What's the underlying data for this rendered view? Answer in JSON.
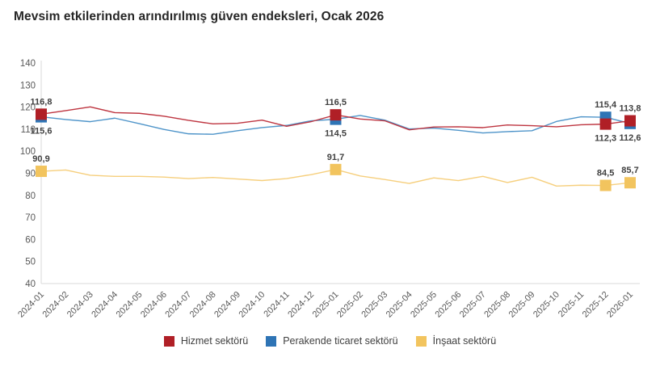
{
  "title": "Mevsim etkilerinden arındırılmış güven endeksleri, Ocak 2026",
  "colors": {
    "axis_line": "#D9D9D9",
    "tick_text": "#595959",
    "point_label_text": "#404040",
    "title_text": "#262626"
  },
  "chart_data": {
    "type": "line",
    "title": "Mevsim etkilerinden arındırılmış güven endeksleri, Ocak 2026",
    "xlabel": "",
    "ylabel": "",
    "ylim": [
      40,
      140
    ],
    "ytick_step": 10,
    "grid": false,
    "legend_position": "bottom",
    "decimal_separator": ",",
    "categories": [
      "2024-01",
      "2024-02",
      "2024-03",
      "2024-04",
      "2024-05",
      "2024-06",
      "2024-07",
      "2024-08",
      "2024-09",
      "2024-10",
      "2024-11",
      "2024-12",
      "2025-01",
      "2025-02",
      "2025-03",
      "2025-04",
      "2025-05",
      "2025-06",
      "2025-07",
      "2025-08",
      "2025-09",
      "2025-10",
      "2025-11",
      "2025-12",
      "2026-01"
    ],
    "series": [
      {
        "name": "Hizmet sektörü",
        "color": "#B01F26",
        "line_color": "#BE3540",
        "values": [
          116.8,
          118.4,
          120.1,
          117.5,
          117.2,
          115.9,
          114.0,
          112.4,
          112.7,
          114.1,
          111.3,
          113.4,
          116.5,
          114.6,
          113.8,
          109.7,
          111.0,
          111.1,
          110.7,
          111.9,
          111.6,
          111.1,
          112.0,
          112.3,
          113.8
        ],
        "point_labels": [
          {
            "index": 0,
            "text": "116,8",
            "pos": "above"
          },
          {
            "index": 12,
            "text": "116,5",
            "pos": "above"
          },
          {
            "index": 23,
            "text": "112,3",
            "pos": "below"
          },
          {
            "index": 24,
            "text": "113,8",
            "pos": "above"
          }
        ]
      },
      {
        "name": "Perakende ticaret sektörü",
        "color": "#2E74B5",
        "line_color": "#4E94C9",
        "values": [
          115.6,
          114.4,
          113.4,
          115.0,
          112.5,
          109.9,
          107.9,
          107.7,
          109.3,
          110.7,
          111.7,
          113.8,
          114.5,
          116.2,
          114.1,
          110.1,
          110.5,
          109.5,
          108.3,
          108.9,
          109.3,
          113.5,
          115.6,
          115.4,
          112.6
        ],
        "point_labels": [
          {
            "index": 0,
            "text": "115,6",
            "pos": "below"
          },
          {
            "index": 12,
            "text": "114,5",
            "pos": "below"
          },
          {
            "index": 23,
            "text": "115,4",
            "pos": "above"
          },
          {
            "index": 24,
            "text": "112,6",
            "pos": "below"
          }
        ]
      },
      {
        "name": "İnşaat sektörü",
        "color": "#F2C45E",
        "line_color": "#F6CF7D",
        "values": [
          90.9,
          91.5,
          89.1,
          88.6,
          88.6,
          88.3,
          87.6,
          88.1,
          87.4,
          86.7,
          87.6,
          89.4,
          91.7,
          88.8,
          87.2,
          85.4,
          87.9,
          86.7,
          88.6,
          85.8,
          88.2,
          84.2,
          84.6,
          84.5,
          85.7
        ],
        "point_labels": [
          {
            "index": 0,
            "text": "90,9",
            "pos": "above"
          },
          {
            "index": 12,
            "text": "91,7",
            "pos": "above"
          },
          {
            "index": 23,
            "text": "84,5",
            "pos": "above"
          },
          {
            "index": 24,
            "text": "85,7",
            "pos": "above"
          }
        ]
      }
    ]
  }
}
